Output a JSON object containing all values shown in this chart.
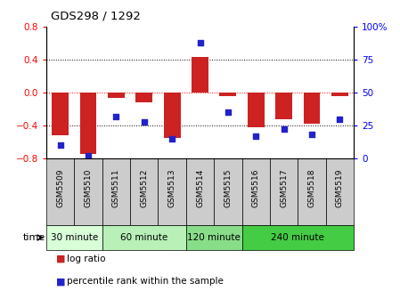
{
  "title": "GDS298 / 1292",
  "samples": [
    "GSM5509",
    "GSM5510",
    "GSM5511",
    "GSM5512",
    "GSM5513",
    "GSM5514",
    "GSM5515",
    "GSM5516",
    "GSM5517",
    "GSM5518",
    "GSM5519"
  ],
  "log_ratio": [
    -0.52,
    -0.75,
    -0.06,
    -0.12,
    -0.55,
    0.43,
    -0.04,
    -0.42,
    -0.32,
    -0.38,
    -0.04
  ],
  "percentile_rank": [
    10,
    2,
    32,
    28,
    15,
    88,
    35,
    17,
    22,
    18,
    30
  ],
  "time_groups": [
    {
      "label": "30 minute",
      "start": 0,
      "end": 2,
      "color": "#d8ffd8"
    },
    {
      "label": "60 minute",
      "start": 2,
      "end": 5,
      "color": "#b8f0b8"
    },
    {
      "label": "120 minute",
      "start": 5,
      "end": 7,
      "color": "#88dd88"
    },
    {
      "label": "240 minute",
      "start": 7,
      "end": 11,
      "color": "#44cc44"
    }
  ],
  "bar_color": "#cc2222",
  "scatter_color": "#2222cc",
  "ylim_left": [
    -0.8,
    0.8
  ],
  "ylim_right": [
    0,
    100
  ],
  "yticks_left": [
    -0.8,
    -0.4,
    0.0,
    0.4,
    0.8
  ],
  "yticks_right": [
    0,
    25,
    50,
    75,
    100
  ],
  "ytick_labels_right": [
    "0",
    "25",
    "50",
    "75",
    "100%"
  ],
  "hlines": [
    0.4,
    0.0,
    -0.4
  ],
  "hline_styles": [
    "dotted",
    "dotted",
    "dotted"
  ],
  "hline_colors": [
    "black",
    "red",
    "black"
  ],
  "legend_labels": [
    "log ratio",
    "percentile rank within the sample"
  ],
  "time_label": "time",
  "sample_bg_color": "#cccccc",
  "plot_bg_color": "#ffffff"
}
